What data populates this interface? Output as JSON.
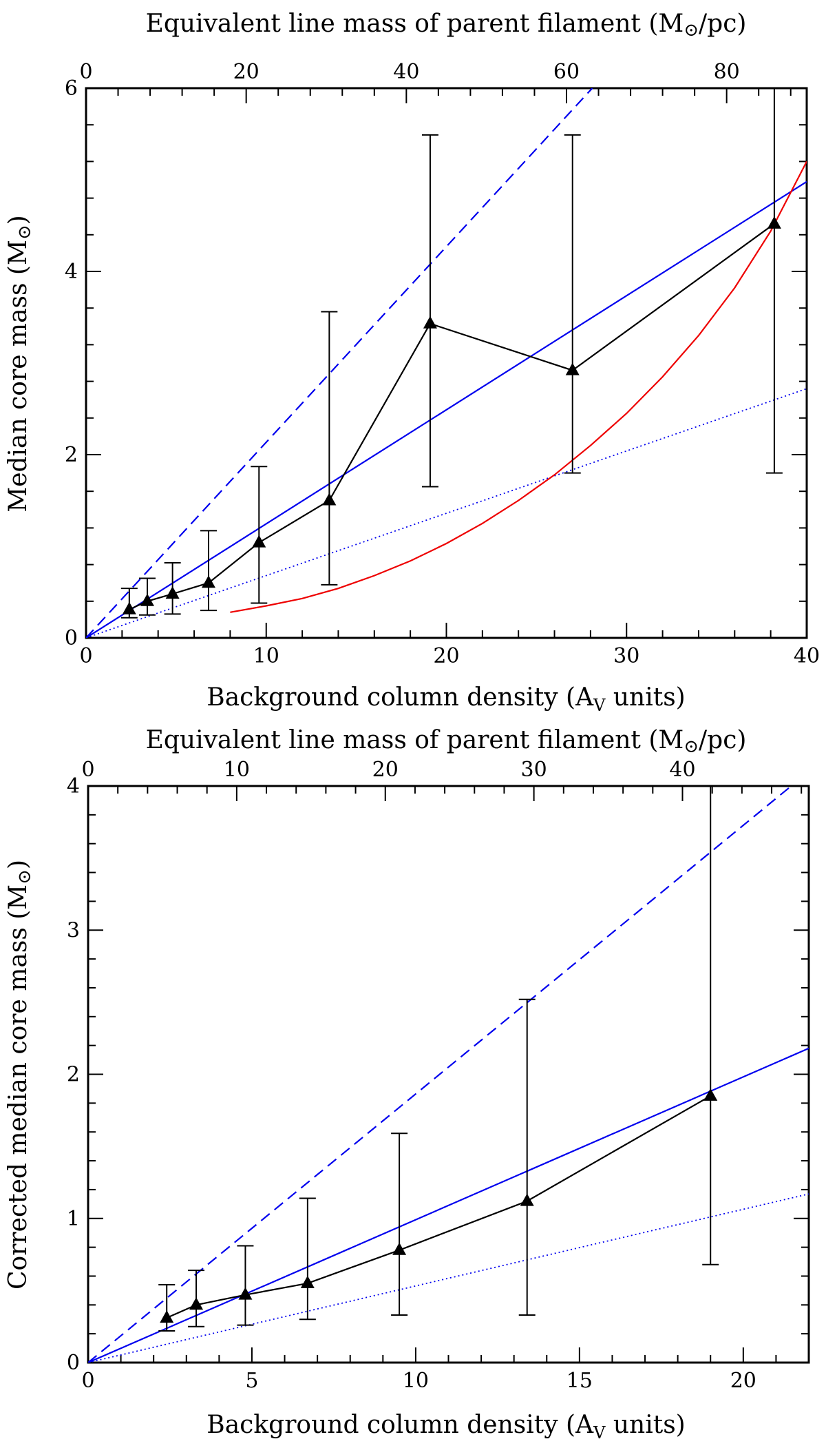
{
  "chart_data": [
    {
      "type": "line",
      "xlabel": "Background column density (A",
      "xlabel_sub": "V",
      "xlabel_tail": " units)",
      "ylabel": "Median core mass (M",
      "ylabel_tail": ")",
      "top_label": "Equivalent line mass of parent filament (M",
      "top_label_tail": "/pc)",
      "xlim": [
        0,
        40
      ],
      "ylim": [
        0,
        6
      ],
      "xticks": [
        0,
        10,
        20,
        30,
        40
      ],
      "yticks": [
        0,
        2,
        4,
        6
      ],
      "top_axis": {
        "ticks": [
          0,
          20,
          40,
          60,
          80
        ],
        "max": 90
      },
      "series": [
        {
          "kind": "data",
          "color": "#000000",
          "marker": "triangle",
          "x": [
            2.4,
            3.4,
            4.8,
            6.8,
            9.6,
            13.5,
            19.1,
            27,
            38.2
          ],
          "y": [
            0.31,
            0.4,
            0.48,
            0.6,
            1.04,
            1.5,
            3.43,
            2.92,
            4.52
          ],
          "err_low": [
            0.22,
            0.25,
            0.26,
            0.3,
            0.38,
            0.58,
            1.65,
            1.8,
            1.8
          ],
          "err_high": [
            0.54,
            0.65,
            0.82,
            1.17,
            1.87,
            3.56,
            5.49,
            5.49,
            6.0
          ]
        },
        {
          "kind": "model",
          "style": "solid",
          "color": "#0000ee",
          "x": [
            0,
            40
          ],
          "y": [
            0,
            4.98
          ]
        },
        {
          "kind": "model",
          "style": "dashed",
          "color": "#0000ee",
          "x": [
            0,
            28.1
          ],
          "y": [
            0,
            6.0
          ]
        },
        {
          "kind": "model",
          "style": "dotted",
          "color": "#0000ee",
          "x": [
            0,
            40
          ],
          "y": [
            0,
            2.72
          ]
        },
        {
          "kind": "model",
          "style": "solid",
          "color": "#ee0000",
          "x": [
            8,
            10,
            12,
            14,
            16,
            18,
            20,
            22,
            24,
            26,
            28,
            30,
            32,
            34,
            36,
            38,
            40
          ],
          "y": [
            0.28,
            0.35,
            0.43,
            0.54,
            0.68,
            0.84,
            1.03,
            1.25,
            1.5,
            1.78,
            2.1,
            2.45,
            2.85,
            3.3,
            3.82,
            4.44,
            5.2
          ]
        }
      ]
    },
    {
      "type": "line",
      "xlabel": "Background column density (A",
      "xlabel_sub": "V",
      "xlabel_tail": " units)",
      "ylabel": "Corrected median core mass (M",
      "ylabel_tail": ")",
      "top_label": "Equivalent line mass of parent filament (M",
      "top_label_tail": "/pc)",
      "xlim": [
        0,
        22
      ],
      "ylim": [
        0,
        4
      ],
      "xticks": [
        0,
        5,
        10,
        15,
        20
      ],
      "yticks": [
        0,
        1,
        2,
        3,
        4
      ],
      "top_axis": {
        "ticks": [
          0,
          10,
          20,
          30,
          40
        ],
        "max": 48.5
      },
      "series": [
        {
          "kind": "data",
          "color": "#000000",
          "marker": "triangle",
          "x": [
            2.4,
            3.3,
            4.8,
            6.7,
            9.5,
            13.4,
            19
          ],
          "y": [
            0.31,
            0.4,
            0.47,
            0.55,
            0.78,
            1.12,
            1.85
          ],
          "err_low": [
            0.22,
            0.25,
            0.26,
            0.3,
            0.33,
            0.33,
            0.68
          ],
          "err_high": [
            0.54,
            0.64,
            0.81,
            1.14,
            1.59,
            2.52,
            4.0
          ]
        },
        {
          "kind": "model",
          "style": "solid",
          "color": "#0000ee",
          "x": [
            0,
            22
          ],
          "y": [
            0,
            2.18
          ]
        },
        {
          "kind": "model",
          "style": "dashed",
          "color": "#0000ee",
          "x": [
            0,
            22
          ],
          "y": [
            0,
            4.1
          ]
        },
        {
          "kind": "model",
          "style": "dotted",
          "color": "#0000ee",
          "x": [
            0,
            22
          ],
          "y": [
            0,
            1.17
          ]
        }
      ]
    }
  ]
}
